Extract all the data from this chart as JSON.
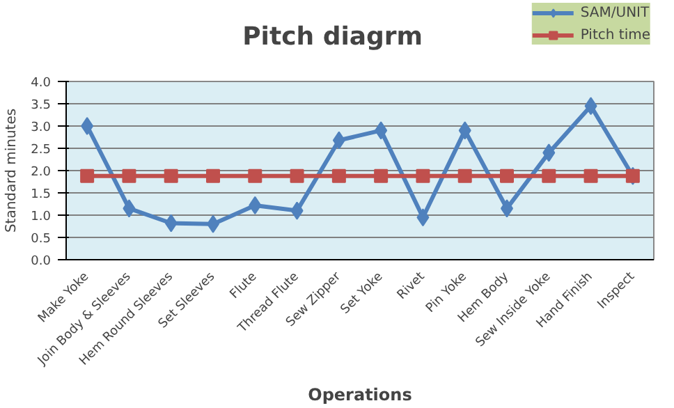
{
  "chart_data": {
    "type": "line",
    "title": "Pitch diagrm",
    "xlabel": "Operations",
    "ylabel": "Standard minutes",
    "categories": [
      "Make Yoke",
      "Join Body & Sleeves",
      "Hem Round Sleeves",
      "Set Sleeves",
      "Flute",
      "Thread Flute",
      "Sew Zipper",
      "Set Yoke",
      "Rivet",
      "Pin Yoke",
      "Hem Body",
      "Sew Inside Yoke",
      "Hand Finish",
      "Inspect"
    ],
    "series": [
      {
        "name": "SAM/UNIT",
        "color": "#4f81bd",
        "marker": "diamond",
        "values": [
          3.0,
          1.15,
          0.82,
          0.8,
          1.22,
          1.1,
          2.68,
          2.9,
          0.95,
          2.9,
          1.15,
          2.4,
          3.45,
          1.88
        ]
      },
      {
        "name": "Pitch time",
        "color": "#c0504d",
        "marker": "square",
        "values": [
          1.88,
          1.88,
          1.88,
          1.88,
          1.88,
          1.88,
          1.88,
          1.88,
          1.88,
          1.88,
          1.88,
          1.88,
          1.88,
          1.88
        ]
      }
    ],
    "ylim": [
      0,
      4
    ],
    "yticks": [
      {
        "value": 0,
        "label": "0.0"
      },
      {
        "value": 0.5,
        "label": "0.5"
      },
      {
        "value": 1,
        "label": "1.0"
      },
      {
        "value": 1.5,
        "label": "1.5"
      },
      {
        "value": 2,
        "label": "2.0"
      },
      {
        "value": 2.5,
        "label": "2.5"
      },
      {
        "value": 3,
        "label": "3.0"
      },
      {
        "value": 3.5,
        "label": "3.5"
      },
      {
        "value": 4,
        "label": "4.0"
      }
    ],
    "grid": "y",
    "legend": "top right",
    "line_style": "solid"
  }
}
